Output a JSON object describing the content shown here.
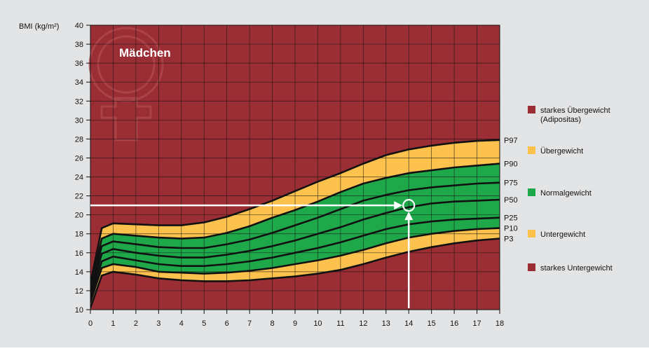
{
  "colors": {
    "background": "#e3e4e5",
    "severe": "#9b2e34",
    "yellow": "#fcc24d",
    "green": "#1ea84a",
    "grid": "#111111",
    "marker": "#ffffff"
  },
  "chart_data": {
    "type": "area",
    "title": "Mädchen",
    "ylabel": "BMI (kg/m²)",
    "xlabel": "",
    "xlim": [
      0,
      18
    ],
    "ylim": [
      10,
      40
    ],
    "grid": true,
    "x_ticks": [
      "0",
      "1",
      "2",
      "3",
      "4",
      "5",
      "6",
      "7",
      "8",
      "9",
      "10",
      "11",
      "12",
      "13",
      "14",
      "15",
      "16",
      "17",
      "18"
    ],
    "y_ticks": [
      "10",
      "12",
      "14",
      "16",
      "18",
      "20",
      "22",
      "24",
      "26",
      "28",
      "30",
      "32",
      "34",
      "36",
      "38",
      "40"
    ],
    "x": [
      0,
      0.5,
      1,
      2,
      3,
      4,
      5,
      6,
      7,
      8,
      9,
      10,
      11,
      12,
      13,
      14,
      15,
      16,
      17,
      18
    ],
    "series": [
      {
        "name": "P3",
        "values": [
          10.2,
          13.6,
          14.0,
          13.7,
          13.3,
          13.1,
          13.0,
          13.0,
          13.1,
          13.3,
          13.5,
          13.8,
          14.2,
          14.8,
          15.5,
          16.1,
          16.6,
          17.0,
          17.3,
          17.5
        ]
      },
      {
        "name": "P10",
        "values": [
          10.8,
          14.4,
          14.8,
          14.5,
          14.0,
          13.9,
          13.8,
          13.9,
          14.1,
          14.4,
          14.8,
          15.2,
          15.7,
          16.3,
          17.0,
          17.6,
          18.0,
          18.3,
          18.5,
          18.6
        ]
      },
      {
        "name": "P25",
        "values": [
          11.2,
          15.1,
          15.6,
          15.2,
          14.8,
          14.6,
          14.6,
          14.8,
          15.1,
          15.5,
          16.0,
          16.5,
          17.1,
          17.8,
          18.5,
          19.0,
          19.3,
          19.5,
          19.6,
          19.7
        ]
      },
      {
        "name": "P50",
        "values": [
          11.6,
          15.9,
          16.4,
          16.0,
          15.7,
          15.5,
          15.5,
          15.8,
          16.2,
          16.7,
          17.3,
          18.0,
          18.7,
          19.5,
          20.2,
          20.8,
          21.2,
          21.4,
          21.5,
          21.6
        ]
      },
      {
        "name": "P75",
        "values": [
          12.0,
          16.7,
          17.2,
          16.9,
          16.6,
          16.5,
          16.5,
          16.9,
          17.4,
          18.1,
          18.9,
          19.7,
          20.6,
          21.5,
          22.1,
          22.6,
          22.9,
          23.1,
          23.3,
          23.4
        ]
      },
      {
        "name": "P90",
        "values": [
          12.4,
          17.5,
          18.0,
          17.8,
          17.6,
          17.5,
          17.6,
          18.1,
          18.8,
          19.7,
          20.5,
          21.4,
          22.4,
          23.3,
          23.9,
          24.4,
          24.7,
          25.0,
          25.2,
          25.4
        ]
      },
      {
        "name": "P97",
        "values": [
          12.8,
          18.6,
          19.1,
          19.0,
          18.9,
          18.9,
          19.2,
          19.8,
          20.6,
          21.5,
          22.5,
          23.5,
          24.4,
          25.4,
          26.3,
          26.9,
          27.3,
          27.6,
          27.8,
          27.9
        ]
      }
    ],
    "example": {
      "x": 14,
      "y": 21
    }
  },
  "legend": [
    {
      "label": "starkes Übergewicht",
      "sub": "(Adipositas)",
      "color": "#9b2e34"
    },
    {
      "label": "Übergewicht",
      "sub": "",
      "color": "#fcc24d"
    },
    {
      "label": "Normalgewicht",
      "sub": "",
      "color": "#1ea84a"
    },
    {
      "label": "Untergewicht",
      "sub": "",
      "color": "#fcc24d"
    },
    {
      "label": "starkes Untergewicht",
      "sub": "",
      "color": "#9b2e34"
    }
  ]
}
